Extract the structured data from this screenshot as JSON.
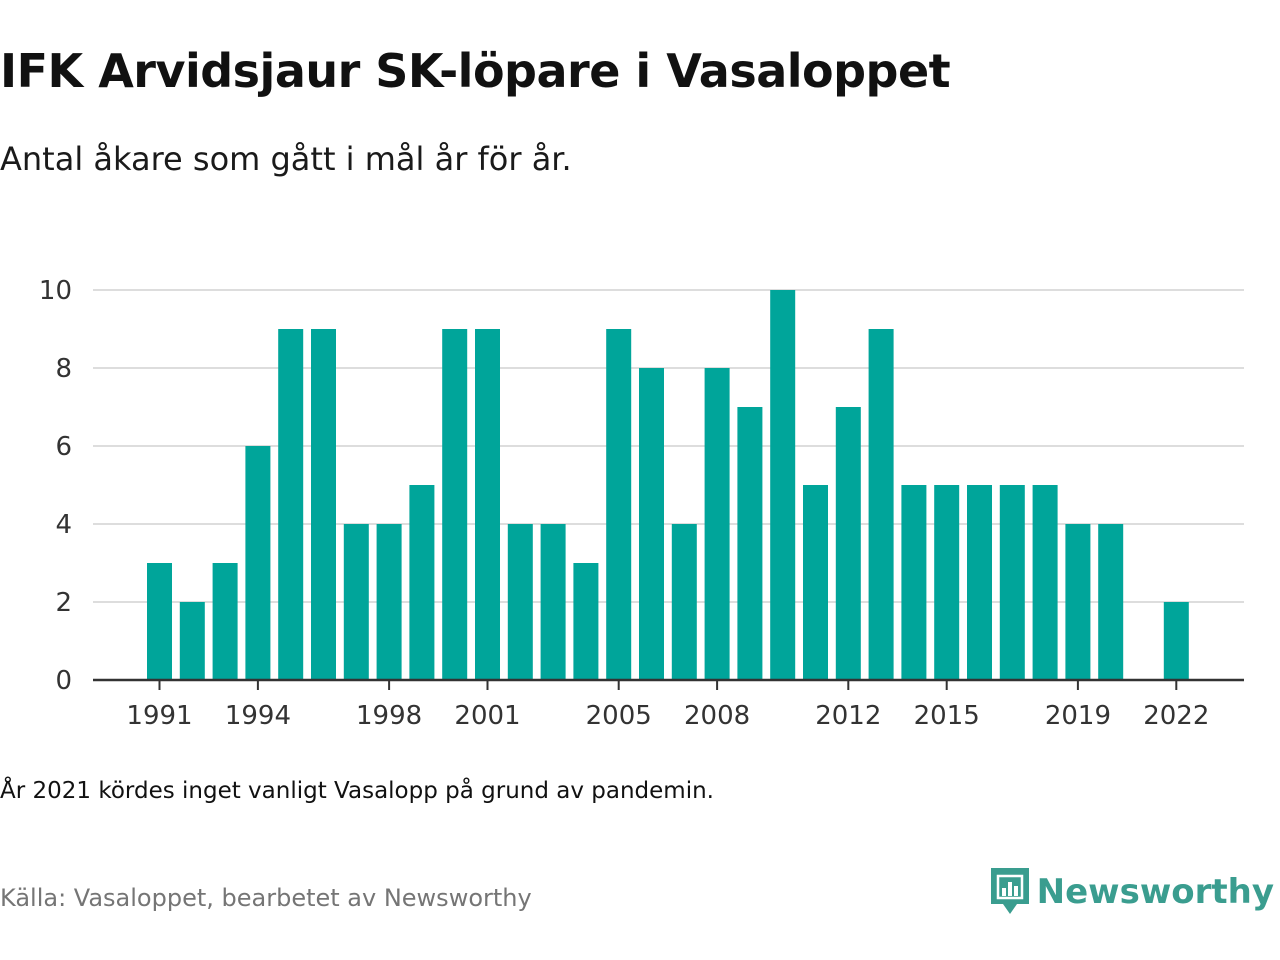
{
  "title": "IFK Arvidsjaur SK-löpare i Vasaloppet",
  "subtitle": "Antal åkare som gått i mål år för år.",
  "note": "År 2021 kördes inget vanligt Vasalopp på grund av pandemin.",
  "source": "Källa: Vasaloppet, bearbetet av Newsworthy",
  "brand": {
    "name": "Newsworthy",
    "icon": "newsworthy-logo-icon",
    "color": "#3a9d8f"
  },
  "colors": {
    "bar": "#00a59a",
    "grid": "#dddddd",
    "axis": "#333333",
    "tick_text": "#333333"
  },
  "chart_data": {
    "type": "bar",
    "categories": [
      "1991",
      "1992",
      "1993",
      "1994",
      "1995",
      "1996",
      "1997",
      "1998",
      "1999",
      "2000",
      "2001",
      "2002",
      "2003",
      "2004",
      "2005",
      "2006",
      "2007",
      "2008",
      "2009",
      "2010",
      "2011",
      "2012",
      "2013",
      "2014",
      "2015",
      "2016",
      "2017",
      "2018",
      "2019",
      "2020",
      "2021",
      "2022"
    ],
    "values": [
      3,
      2,
      3,
      6,
      9,
      9,
      4,
      4,
      5,
      9,
      9,
      4,
      4,
      3,
      9,
      8,
      4,
      8,
      7,
      10,
      5,
      7,
      9,
      5,
      5,
      5,
      5,
      5,
      4,
      4,
      null,
      2
    ],
    "x_tick_labels": [
      "1991",
      "1994",
      "1998",
      "2001",
      "2005",
      "2008",
      "2012",
      "2015",
      "2019",
      "2022"
    ],
    "y_ticks": [
      0,
      2,
      4,
      6,
      8,
      10
    ],
    "ylim": [
      0,
      10
    ],
    "grid": true,
    "legend": "none"
  }
}
